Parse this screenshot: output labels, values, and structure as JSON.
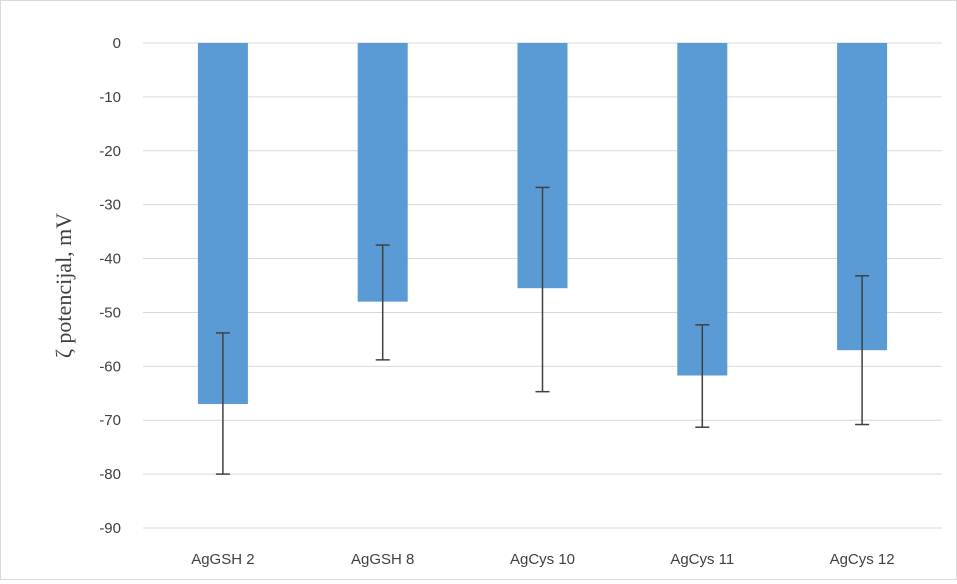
{
  "chart_data": {
    "type": "bar",
    "ylabel": "ζ potencijal, mV",
    "xlabel": "",
    "ylim": [
      -90,
      0
    ],
    "yticks": [
      0,
      -10,
      -20,
      -30,
      -40,
      -50,
      -60,
      -70,
      -80,
      -90
    ],
    "grid": true,
    "categories": [
      "AgGSH 2",
      "AgGSH 8",
      "AgCys 10",
      "AgCys 11",
      "AgCys 12"
    ],
    "values": [
      -67,
      -48,
      -45.5,
      -61.7,
      -57
    ],
    "error_low": [
      -80,
      -58.8,
      -64.7,
      -71.3,
      -70.8
    ],
    "error_high": [
      -53.8,
      -37.5,
      -26.8,
      -52.3,
      -43.2
    ],
    "colors": {
      "bar": "#5b9bd5",
      "error_bar": "#404040",
      "grid": "#d9d9d9",
      "axis_text": "#404040"
    }
  }
}
